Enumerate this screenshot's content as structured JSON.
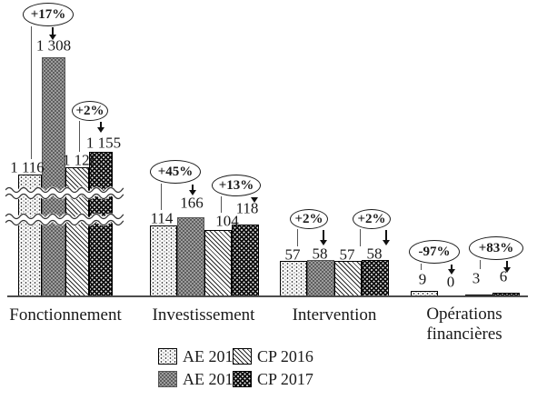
{
  "chart_data": {
    "type": "bar",
    "title": "",
    "categories": [
      {
        "label": "Fonctionnement",
        "lines": [
          "Fonctionnement"
        ]
      },
      {
        "label": "Investissement",
        "lines": [
          "Investissement"
        ]
      },
      {
        "label": "Intervention",
        "lines": [
          "Intervention"
        ]
      },
      {
        "label": "Opérations financières",
        "lines": [
          "Opérations",
          "financières"
        ]
      }
    ],
    "series": [
      {
        "name": "AE 2016",
        "pattern": "dotted-white",
        "values": [
          1116,
          114,
          57,
          9
        ],
        "value_labels": [
          "1 116",
          "114",
          "57",
          "9"
        ]
      },
      {
        "name": "AE 2017",
        "pattern": "gray-checker",
        "values": [
          1308,
          166,
          58,
          0
        ],
        "value_labels": [
          "1 308",
          "166",
          "58",
          "0"
        ]
      },
      {
        "name": "CP 2016",
        "pattern": "diagonal-hatch",
        "values": [
          1128,
          104,
          57,
          3
        ],
        "value_labels": [
          "1 128",
          "104",
          "57",
          "3"
        ]
      },
      {
        "name": "CP 2017",
        "pattern": "black-dotted",
        "values": [
          1155,
          118,
          58,
          6
        ],
        "value_labels": [
          "1 155",
          "118",
          "58",
          "6"
        ]
      }
    ],
    "annotations": [
      {
        "label": "+17%",
        "category": "Fonctionnement",
        "from": "AE 2016",
        "to": "AE 2017"
      },
      {
        "label": "+2%",
        "category": "Fonctionnement",
        "from": "CP 2016",
        "to": "CP 2017"
      },
      {
        "label": "+45%",
        "category": "Investissement",
        "from": "AE 2016",
        "to": "AE 2017"
      },
      {
        "label": "+13%",
        "category": "Investissement",
        "from": "CP 2016",
        "to": "CP 2017"
      },
      {
        "label": "+2%",
        "category": "Intervention",
        "from": "AE 2016",
        "to": "AE 2017"
      },
      {
        "label": "+2%",
        "category": "Intervention",
        "from": "CP 2016",
        "to": "CP 2017"
      },
      {
        "label": "-97%",
        "category": "Opérations financières",
        "from": "AE 2016",
        "to": "AE 2017"
      },
      {
        "label": "+83%",
        "category": "Opérations financières",
        "from": "CP 2016",
        "to": "CP 2017"
      }
    ],
    "legend": {
      "position": "bottom-center",
      "items": [
        "AE 2016",
        "CP 2016",
        "AE 2017",
        "CP 2017"
      ]
    },
    "axis": {
      "baseline_visible": true,
      "y_axis_visible": false,
      "broken_axis_on": "Fonctionnement",
      "break_count": 2
    },
    "colors": {
      "bar_black": "#101010",
      "bar_gray": "#9d9d9d",
      "ink": "#1a1a1a",
      "axis": "#4d4d4d"
    }
  }
}
